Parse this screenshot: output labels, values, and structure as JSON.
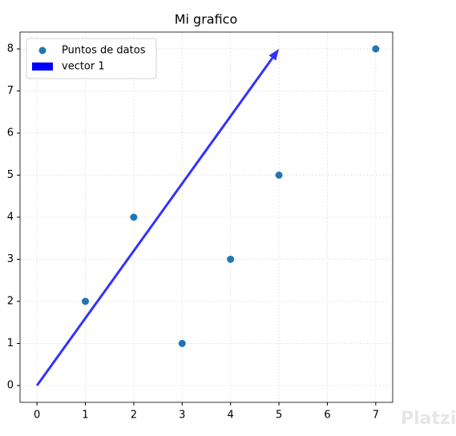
{
  "chart_data": {
    "type": "scatter",
    "title": "Mi grafico",
    "x": [
      1,
      2,
      3,
      4,
      5,
      7
    ],
    "series": [
      {
        "name": "Puntos de datos",
        "color": "#1f77b4",
        "values": [
          2,
          4,
          1,
          3,
          5,
          8
        ]
      }
    ],
    "vectors": [
      {
        "name": "vector 1",
        "color": "#0000ff",
        "origin": [
          0,
          0
        ],
        "components": [
          5,
          8
        ]
      }
    ],
    "xlim": [
      -0.35,
      7.35
    ],
    "ylim": [
      -0.4,
      8.4
    ],
    "xticks": [
      0,
      1,
      2,
      3,
      4,
      5,
      6,
      7
    ],
    "yticks": [
      0,
      1,
      2,
      3,
      4,
      5,
      6,
      7,
      8
    ],
    "grid": true,
    "legend": "upper left"
  },
  "watermark": "Platzi"
}
